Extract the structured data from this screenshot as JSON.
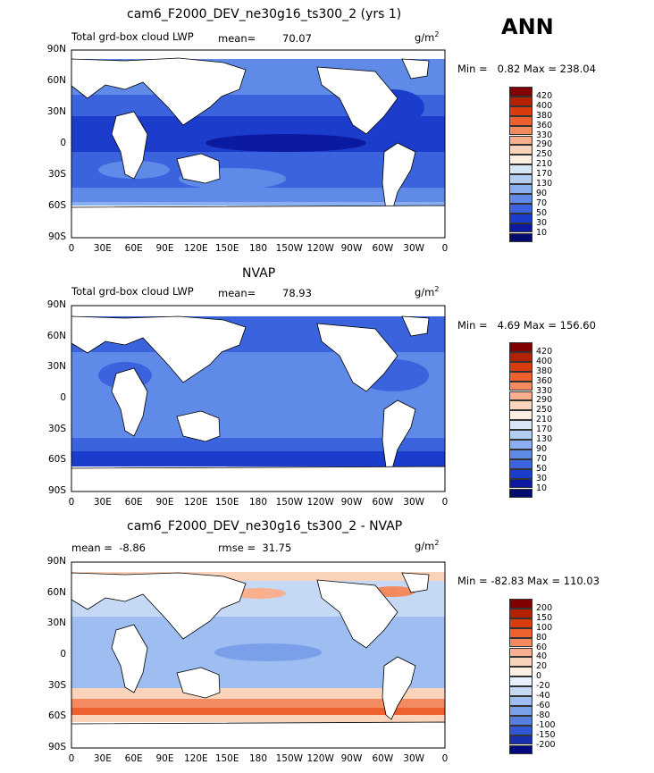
{
  "season": "ANN",
  "panels": [
    {
      "title": "cam6_F2000_DEV_ne30g16_ts300_2 (yrs 1)",
      "left_label": "Total grd-box cloud LWP",
      "mean_label": "mean=",
      "mean_value": "70.07",
      "units": "g/m",
      "units_sup": "2",
      "minmax": "Min =   0.82 Max = 238.04",
      "colorbar_levels": [
        "420",
        "400",
        "380",
        "360",
        "330",
        "290",
        "250",
        "210",
        "170",
        "130",
        "90",
        "70",
        "50",
        "30",
        "10"
      ]
    },
    {
      "title": "NVAP",
      "left_label": "Total grd-box cloud LWP",
      "mean_label": "mean=",
      "mean_value": "78.93",
      "units": "g/m",
      "units_sup": "2",
      "minmax": "Min =   4.69 Max = 156.60",
      "colorbar_levels": [
        "420",
        "400",
        "380",
        "360",
        "330",
        "290",
        "250",
        "210",
        "170",
        "130",
        "90",
        "70",
        "50",
        "30",
        "10"
      ]
    },
    {
      "title": "cam6_F2000_DEV_ne30g16_ts300_2 - NVAP",
      "left_label": "mean =  -8.86",
      "rmse_label": "rmse =  31.75",
      "units": "g/m",
      "units_sup": "2",
      "minmax": "Min = -82.83 Max = 110.03",
      "colorbar_levels": [
        "200",
        "150",
        "100",
        "80",
        "60",
        "40",
        "20",
        "0",
        "-20",
        "-40",
        "-60",
        "-80",
        "-100",
        "-150",
        "-200"
      ]
    }
  ],
  "lat_ticks": [
    "90N",
    "60N",
    "30N",
    "0",
    "30S",
    "60S",
    "90S"
  ],
  "lon_ticks": [
    "0",
    "30E",
    "60E",
    "90E",
    "120E",
    "150E",
    "180",
    "150W",
    "120W",
    "90W",
    "60W",
    "30W",
    "0"
  ],
  "colors": {
    "seq": [
      "#800000",
      "#b22200",
      "#d83b0e",
      "#ee6030",
      "#f48a5f",
      "#f8b08e",
      "#fbd3bb",
      "#fdf0e2",
      "#d7e6f7",
      "#b4cdf2",
      "#8aaff0",
      "#5f8ae8",
      "#3a63dd",
      "#1c3ccc",
      "#0b1aa1",
      "#050b6e"
    ],
    "diff": [
      "#800000",
      "#b22200",
      "#d83b0e",
      "#ee6030",
      "#f48a5f",
      "#f8b08e",
      "#fbd3bb",
      "#fdf0e2",
      "#e8f0fb",
      "#c5d8f5",
      "#9ebdf0",
      "#7aa0ea",
      "#5580e0",
      "#3058d2",
      "#1630b0",
      "#060a80"
    ]
  }
}
